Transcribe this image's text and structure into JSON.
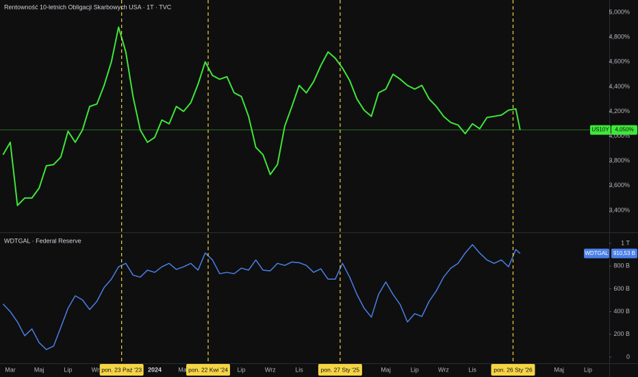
{
  "chart_data": [
    {
      "type": "line",
      "title": "Rentowność 10-letnich Obligacji Skarbowych USA · 1T · TVC",
      "ylim": [
        3.228,
        5.1
      ],
      "yticks": [
        {
          "value": 3.4,
          "label": "3,400%"
        },
        {
          "value": 3.6,
          "label": "3,600%"
        },
        {
          "value": 3.8,
          "label": "3,800%"
        },
        {
          "value": 4.0,
          "label": "4,000%"
        },
        {
          "value": 4.2,
          "label": "4,200%"
        },
        {
          "value": 4.4,
          "label": "4,400%"
        },
        {
          "value": 4.6,
          "label": "4,600%"
        },
        {
          "value": 4.8,
          "label": "4,800%"
        },
        {
          "value": 5.0,
          "label": "5,000%"
        }
      ],
      "series": [
        {
          "name": "US10Y",
          "color": "#3ee83a",
          "last_value_label": "4,050%",
          "x": [
            1.5,
            2,
            2.5,
            3,
            3.5,
            4,
            4.5,
            5,
            5.5,
            6,
            6.5,
            7,
            7.5,
            8,
            8.5,
            9,
            9.5,
            10,
            10.5,
            11,
            11.5,
            12,
            12.5,
            13,
            13.5,
            14,
            14.5,
            15,
            15.5,
            16,
            16.5,
            17,
            17.5,
            18,
            18.5,
            19,
            19.5,
            20,
            20.5,
            21,
            21.5,
            22,
            22.5,
            23,
            23.5,
            24,
            24.5,
            25,
            25.5,
            26,
            26.5,
            27,
            27.5,
            28,
            28.5,
            29,
            29.5,
            30,
            30.5,
            31,
            31.5,
            32,
            32.5,
            33,
            33.5,
            34,
            34.5,
            35,
            35.5,
            36,
            36.5,
            37,
            37.3
          ],
          "values": [
            3.85,
            3.95,
            3.44,
            3.5,
            3.5,
            3.58,
            3.76,
            3.77,
            3.83,
            4.04,
            3.95,
            4.05,
            4.24,
            4.26,
            4.41,
            4.6,
            4.88,
            4.68,
            4.32,
            4.05,
            3.95,
            3.99,
            4.13,
            4.1,
            4.24,
            4.2,
            4.27,
            4.42,
            4.6,
            4.49,
            4.46,
            4.48,
            4.35,
            4.32,
            4.16,
            3.91,
            3.85,
            3.69,
            3.77,
            4.08,
            4.24,
            4.41,
            4.35,
            4.44,
            4.57,
            4.68,
            4.63,
            4.55,
            4.45,
            4.3,
            4.21,
            4.16,
            4.35,
            4.38,
            4.5,
            4.46,
            4.41,
            4.38,
            4.41,
            4.3,
            4.24,
            4.16,
            4.11,
            4.09,
            4.02,
            4.1,
            4.06,
            4.15,
            4.16,
            4.17,
            4.21,
            4.22,
            4.05
          ]
        }
      ],
      "markers": [
        {
          "x": 9.71,
          "label": "pon. 23 Paź '23"
        },
        {
          "x": 15.7,
          "label": "pon. 22 Kwi '24"
        },
        {
          "x": 24.84,
          "label": "pon. 27 Sty '25"
        },
        {
          "x": 36.81,
          "label": "pon. 26 Sty '26"
        }
      ],
      "marker_color": "#f5d545"
    },
    {
      "type": "line",
      "title": "WDTGAL · Federal Reserve",
      "ylim": [
        -54,
        1090
      ],
      "yticks": [
        0,
        {
          "value": 200,
          "label": "200 B"
        },
        {
          "value": 400,
          "label": "400 B"
        },
        {
          "value": 600,
          "label": "600 B"
        },
        {
          "value": 800,
          "label": "800 B"
        },
        {
          "value": 1000,
          "label": "1 T"
        }
      ],
      "xlim": [
        1.29,
        43.47
      ],
      "xticks": [
        {
          "value": 2,
          "label": "Mar"
        },
        {
          "value": 4,
          "label": "Maj"
        },
        {
          "value": 6,
          "label": "Lip"
        },
        {
          "value": 8,
          "label": "Wrz"
        },
        {
          "value": 12,
          "label": "2024"
        },
        {
          "value": 14,
          "label": "Mar"
        },
        {
          "value": 18,
          "label": "Lip"
        },
        {
          "value": 20,
          "label": "Wrz"
        },
        {
          "value": 22,
          "label": "Lis"
        },
        {
          "value": 28,
          "label": "Maj"
        },
        {
          "value": 30,
          "label": "Lip"
        },
        {
          "value": 32,
          "label": "Wrz"
        },
        {
          "value": 34,
          "label": "Lis"
        },
        {
          "value": 40,
          "label": "Maj"
        },
        {
          "value": 42,
          "label": "Lip"
        }
      ],
      "series": [
        {
          "name": "WDTGAL",
          "color": "#4a80e8",
          "last_value_label": "910,53 B",
          "x": [
            1.5,
            2,
            2.5,
            3,
            3.5,
            4,
            4.5,
            5,
            5.5,
            6,
            6.5,
            7,
            7.5,
            8,
            8.5,
            9,
            9.5,
            10,
            10.5,
            11,
            11.5,
            12,
            12.5,
            13,
            13.5,
            14,
            14.5,
            15,
            15.5,
            16,
            16.5,
            17,
            17.5,
            18,
            18.5,
            19,
            19.5,
            20,
            20.5,
            21,
            21.5,
            22,
            22.5,
            23,
            23.5,
            24,
            24.5,
            25,
            25.5,
            26,
            26.5,
            27,
            27.5,
            28,
            28.5,
            29,
            29.5,
            30,
            30.5,
            31,
            31.5,
            32,
            32.5,
            33,
            33.5,
            34,
            34.5,
            35,
            35.5,
            36,
            36.5,
            37,
            37.3
          ],
          "values": [
            467,
            400,
            309,
            188,
            248,
            127,
            67,
            97,
            261,
            430,
            539,
            503,
            418,
            491,
            612,
            685,
            794,
            824,
            721,
            703,
            764,
            745,
            794,
            824,
            770,
            794,
            824,
            764,
            915,
            854,
            733,
            745,
            733,
            782,
            764,
            854,
            764,
            758,
            824,
            806,
            836,
            830,
            806,
            745,
            776,
            685,
            685,
            824,
            703,
            551,
            430,
            351,
            551,
            660,
            551,
            461,
            309,
            382,
            357,
            491,
            582,
            703,
            782,
            824,
            915,
            988,
            915,
            854,
            824,
            854,
            794,
            945,
            910.53
          ]
        }
      ]
    }
  ]
}
